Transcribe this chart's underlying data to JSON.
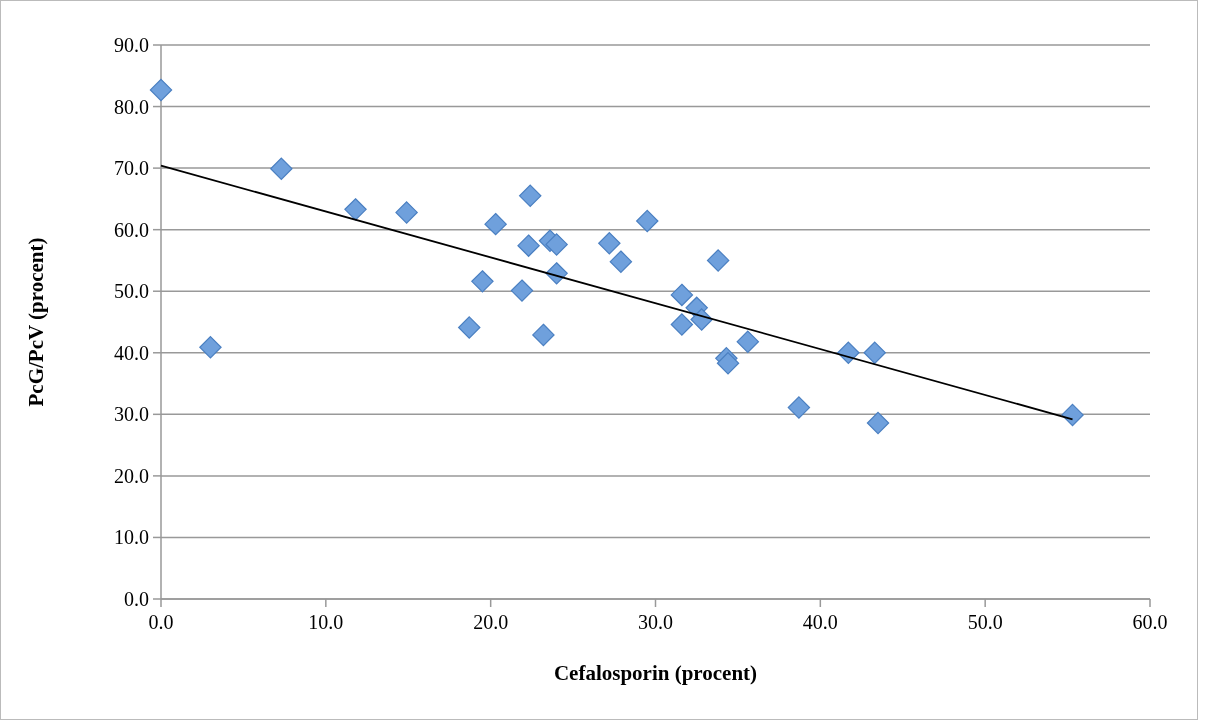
{
  "chart_data": {
    "type": "scatter",
    "xlabel": "Cefalosporin (procent)",
    "ylabel": "PcG/PcV (procent)",
    "xlim": [
      0,
      60
    ],
    "ylim": [
      0,
      90
    ],
    "xticks": [
      {
        "value": 0,
        "label": "0.0"
      },
      {
        "value": 10,
        "label": "10.0"
      },
      {
        "value": 20,
        "label": "20.0"
      },
      {
        "value": 30,
        "label": "30.0"
      },
      {
        "value": 40,
        "label": "40.0"
      },
      {
        "value": 50,
        "label": "50.0"
      },
      {
        "value": 60,
        "label": "60.0"
      }
    ],
    "yticks": [
      {
        "value": 0,
        "label": "0.0"
      },
      {
        "value": 10,
        "label": "10.0"
      },
      {
        "value": 20,
        "label": "20.0"
      },
      {
        "value": 30,
        "label": "30.0"
      },
      {
        "value": 40,
        "label": "40.0"
      },
      {
        "value": 50,
        "label": "50.0"
      },
      {
        "value": 60,
        "label": "60.0"
      },
      {
        "value": 70,
        "label": "70.0"
      },
      {
        "value": 80,
        "label": "80.0"
      },
      {
        "value": 90,
        "label": "90.0"
      }
    ],
    "grid": "y",
    "series": [
      {
        "marker": "diamond",
        "color": "#6fa0dc",
        "x": [
          0,
          3.0,
          7.3,
          11.8,
          14.9,
          18.7,
          19.5,
          20.3,
          21.9,
          22.3,
          22.4,
          23.2,
          23.6,
          24.0,
          24.0,
          27.2,
          27.9,
          29.5,
          31.6,
          31.6,
          32.5,
          32.8,
          33.8,
          34.3,
          34.4,
          35.6,
          38.7,
          41.7,
          43.3,
          43.5,
          55.3
        ],
        "values": [
          82.7,
          40.9,
          69.9,
          63.3,
          62.8,
          44.1,
          51.6,
          60.9,
          50.1,
          57.4,
          65.5,
          42.9,
          58.2,
          57.6,
          52.9,
          57.8,
          54.8,
          61.4,
          49.4,
          44.6,
          47.3,
          45.4,
          55.0,
          39.1,
          38.3,
          41.8,
          31.1,
          40.0,
          40.0,
          28.6,
          29.9
        ]
      },
      {
        "type": "line",
        "color": "#000000",
        "x": [
          0,
          55.3
        ],
        "values": [
          70.4,
          29.2
        ]
      }
    ]
  }
}
